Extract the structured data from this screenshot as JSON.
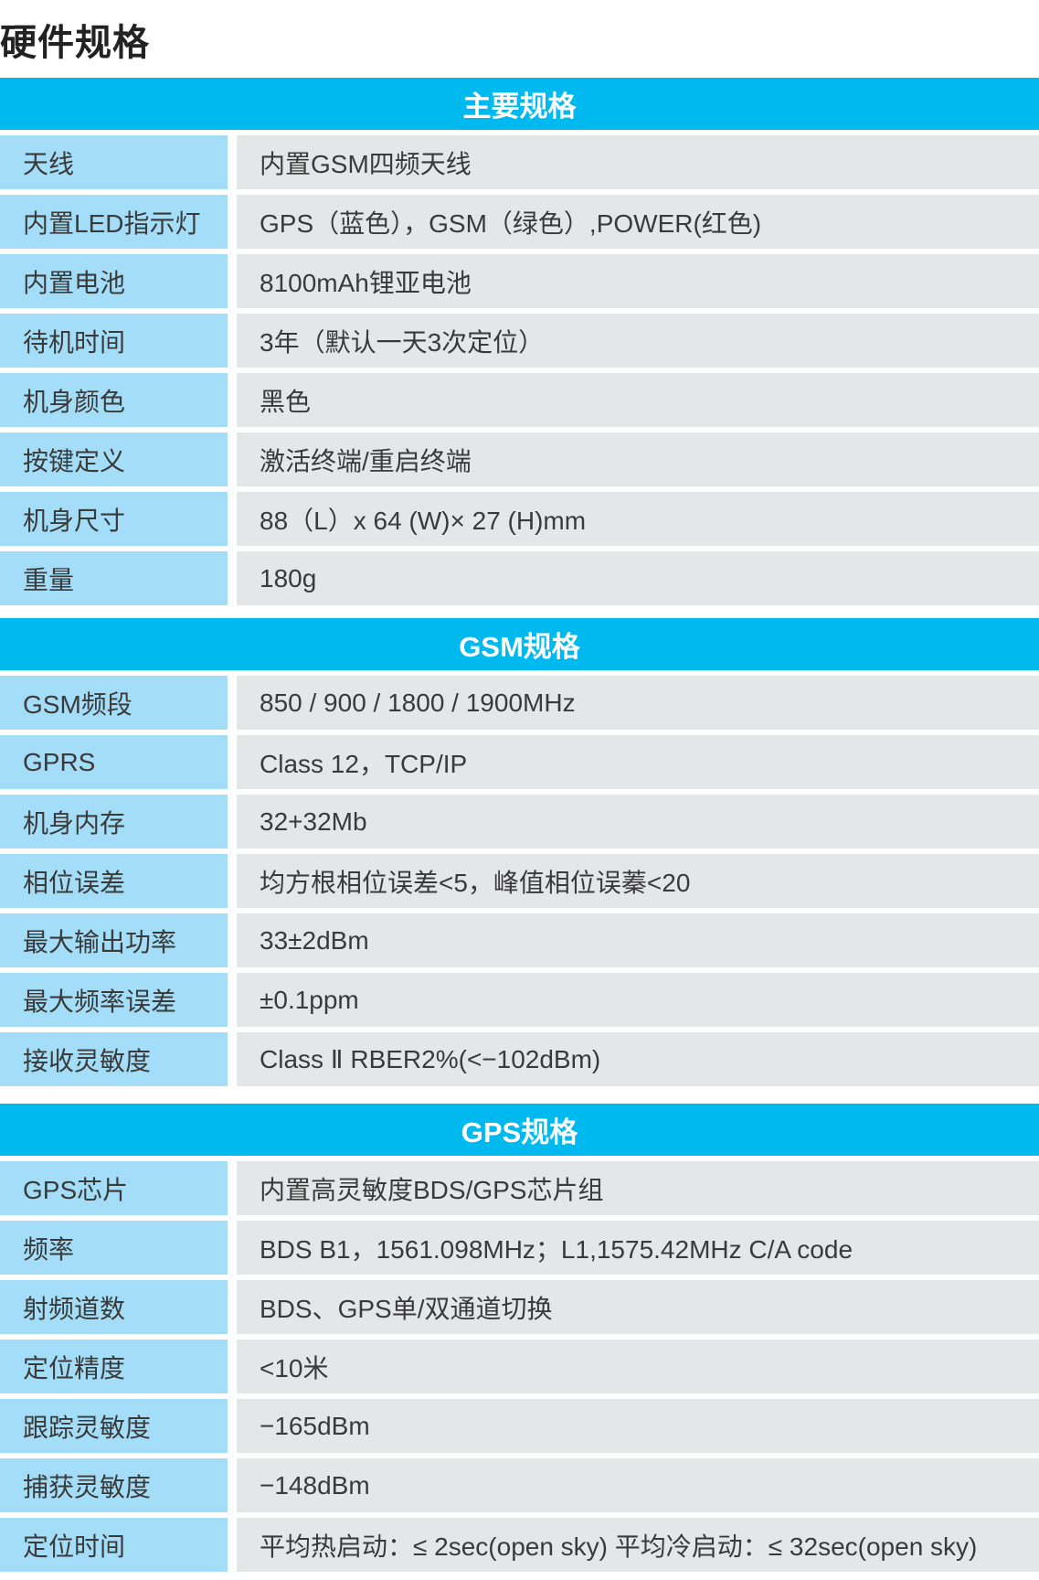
{
  "title": "硬件规格",
  "sections": [
    {
      "header": "主要规格",
      "rows": [
        {
          "label": "天线",
          "value": "内置GSM四频天线"
        },
        {
          "label": "内置LED指示灯",
          "value": "GPS（蓝色），GSM（绿色）,POWER(红色)"
        },
        {
          "label": "内置电池",
          "value": "8100mAh锂亚电池"
        },
        {
          "label": "待机时间",
          "value": "3年（默认一天3次定位）"
        },
        {
          "label": "机身颜色",
          "value": "黑色"
        },
        {
          "label": "按键定义",
          "value": "激活终端/重启终端"
        },
        {
          "label": "机身尺寸",
          "value": "88（L）x 64 (W)× 27 (H)mm"
        },
        {
          "label": "重量",
          "value": "180g"
        }
      ]
    },
    {
      "header": "GSM规格",
      "rows": [
        {
          "label": "GSM频段",
          "value": "850 / 900 / 1800 / 1900MHz"
        },
        {
          "label": "GPRS",
          "value": "Class 12，TCP/IP"
        },
        {
          "label": "机身内存",
          "value": "32+32Mb"
        },
        {
          "label": "相位误差",
          "value": "均方根相位误差<5，峰值相位误蓁<20"
        },
        {
          "label": "最大输出功率",
          "value": "33±2dBm"
        },
        {
          "label": "最大频率误差",
          "value": " ±0.1ppm"
        },
        {
          "label": "接收灵敏度",
          "value": "Class Ⅱ RBER2%(<−102dBm)"
        }
      ]
    },
    {
      "header": "GPS规格",
      "rows": [
        {
          "label": "GPS芯片",
          "value": "内置高灵敏度BDS/GPS芯片组"
        },
        {
          "label": "频率",
          "value": "BDS B1，1561.098MHz；L1,1575.42MHz C/A code"
        },
        {
          "label": "射频道数",
          "value": "BDS、GPS单/双通道切换"
        },
        {
          "label": "定位精度",
          "value": "<10米"
        },
        {
          "label": "跟踪灵敏度",
          "value": "−165dBm"
        },
        {
          "label": "捕获灵敏度",
          "value": "−148dBm"
        },
        {
          "label": "定位时间",
          "value": "平均热启动：≤ 2sec(open sky)  平均冷启动：≤ 32sec(open sky)"
        }
      ]
    }
  ]
}
